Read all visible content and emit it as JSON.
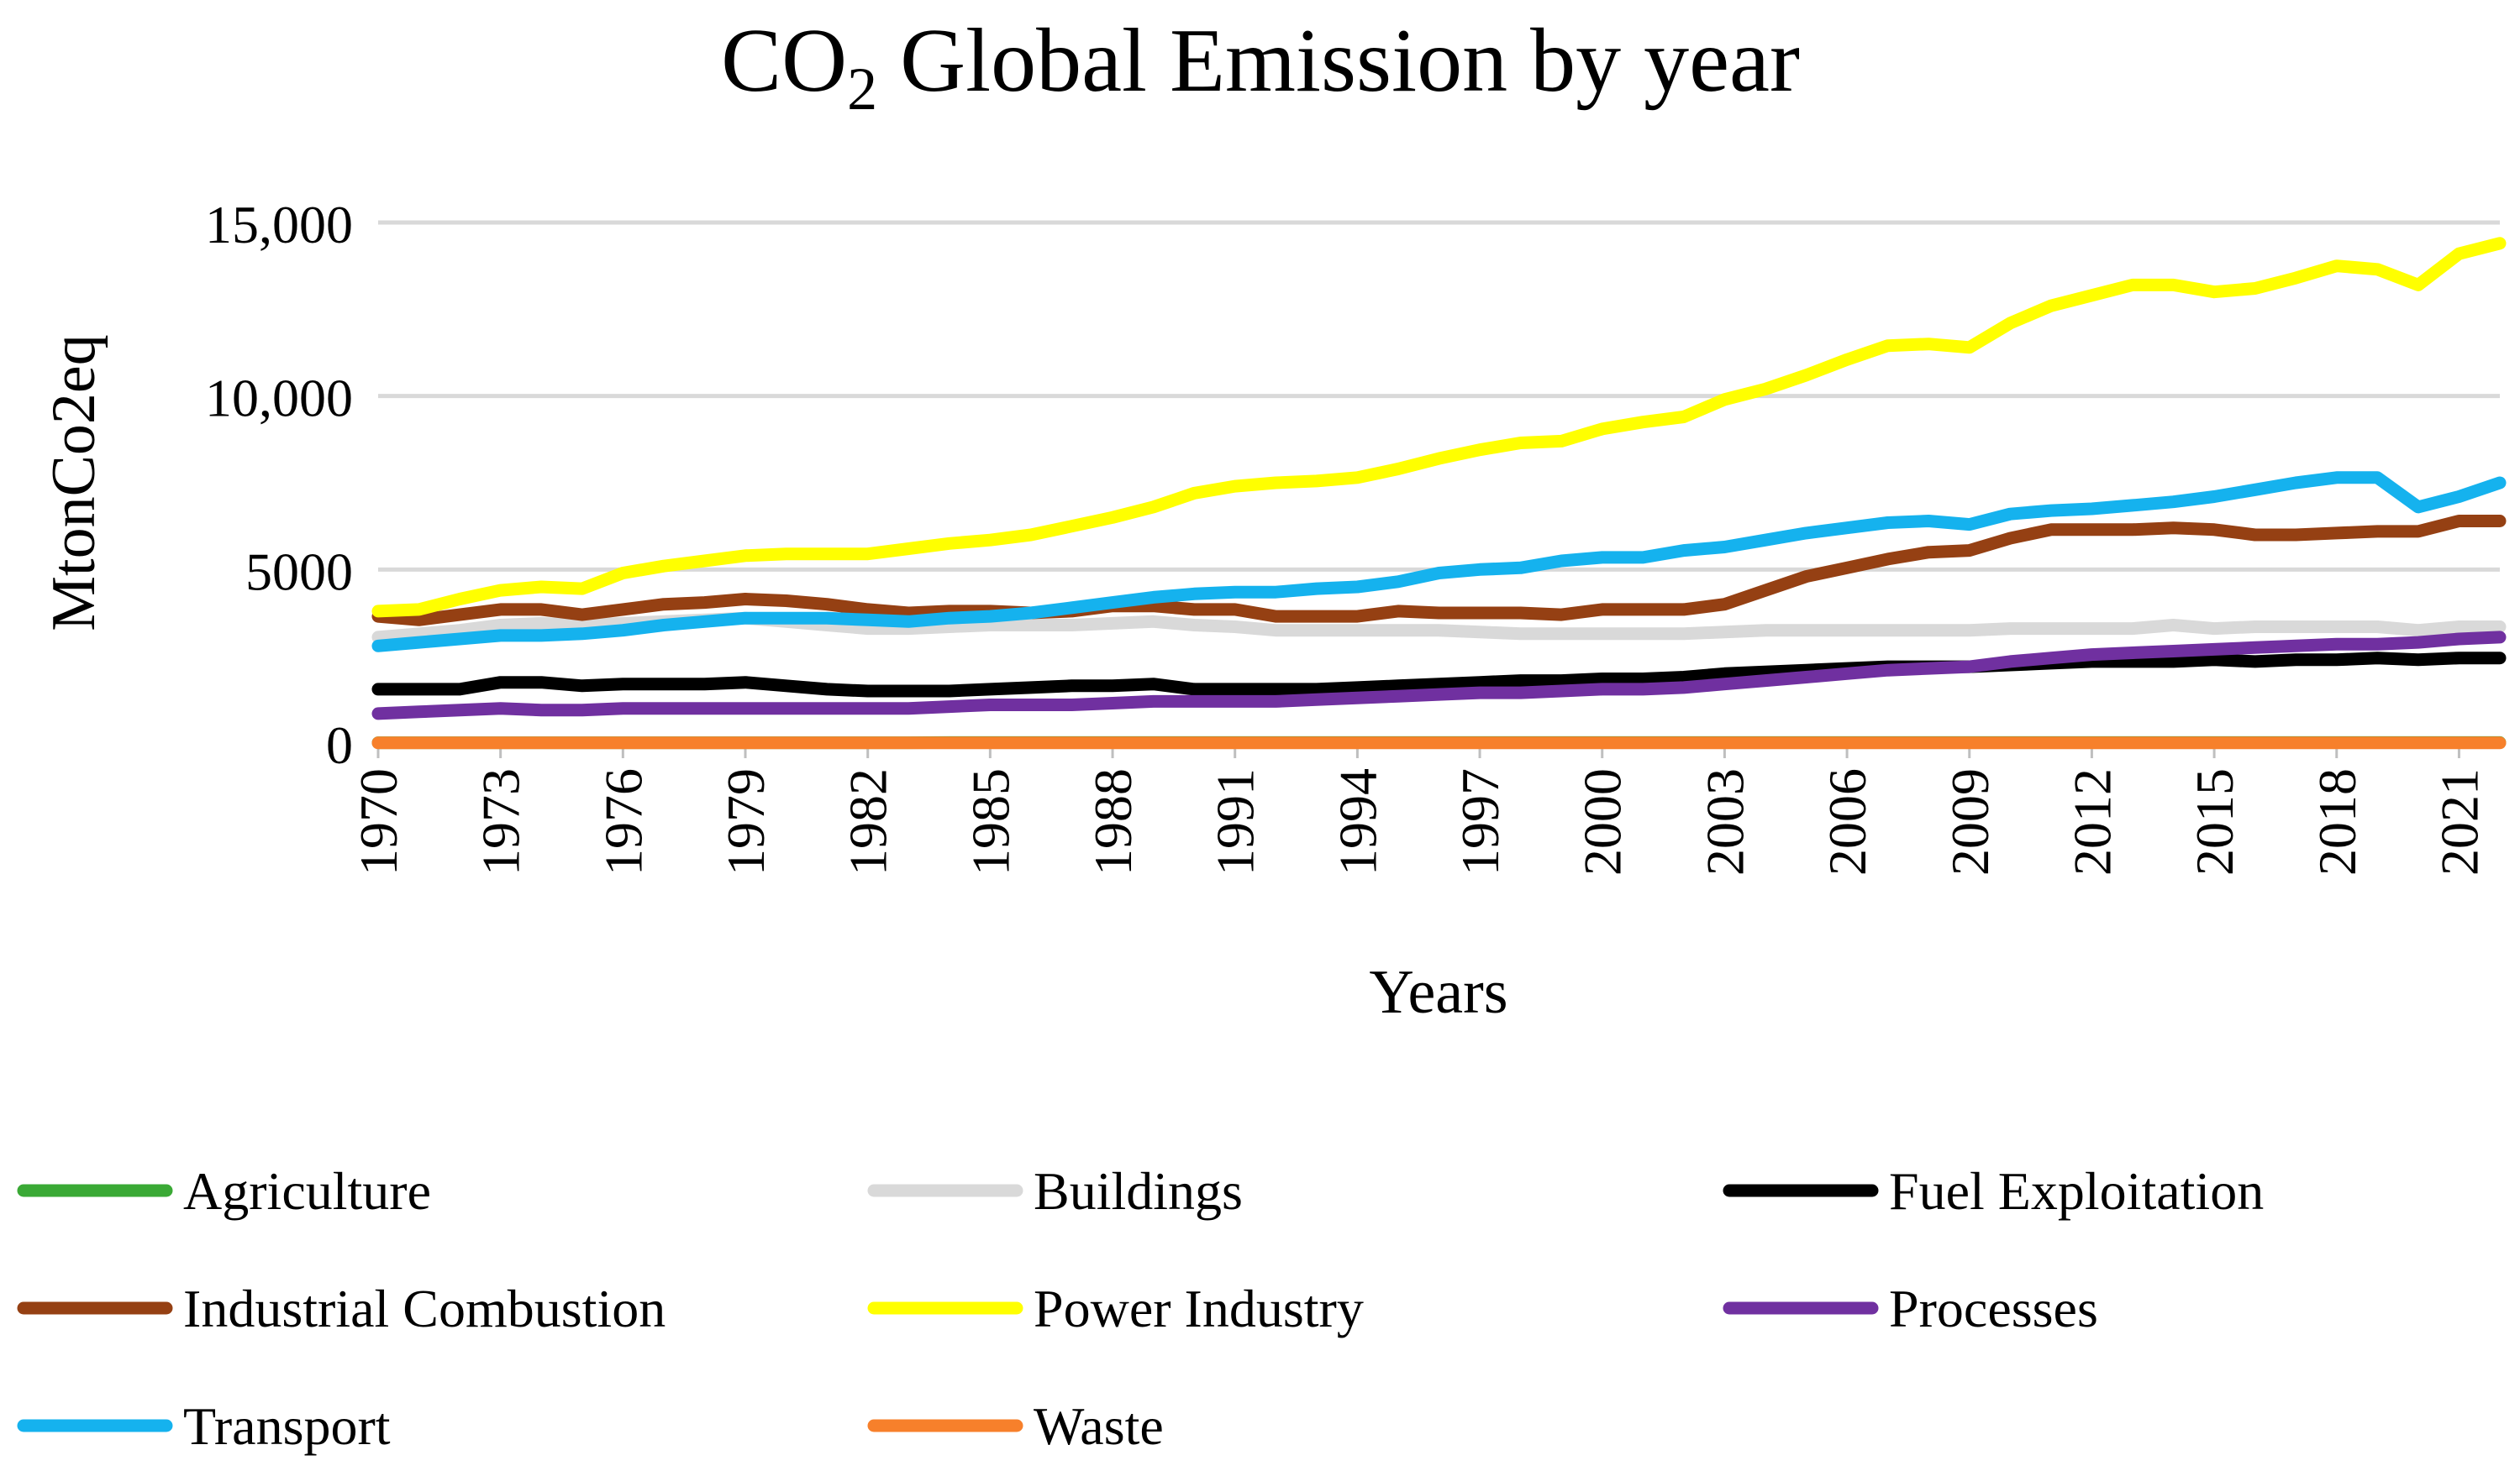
{
  "chart_data": {
    "type": "line",
    "title": "CO2 Global Emission by year",
    "title_parts": {
      "main": "CO",
      "subscript": "2",
      "rest": " Global Emission by year"
    },
    "xlabel": "Years",
    "ylabel": "MtonCo2eq",
    "ylim": [
      0,
      15000
    ],
    "yticks": [
      0,
      5000,
      10000,
      15000
    ],
    "ytick_labels": [
      "0",
      "5000",
      "10,000",
      "15,000"
    ],
    "xtick_years": [
      1970,
      1973,
      1976,
      1979,
      1982,
      1985,
      1988,
      1991,
      1994,
      1997,
      2000,
      2003,
      2006,
      2009,
      2012,
      2015,
      2018,
      2021
    ],
    "xtick_labels": [
      "1970",
      "1973",
      "1976",
      "1979",
      "1982",
      "1985",
      "1988",
      "1991",
      "1994",
      "1997",
      "2000",
      "2003",
      "2006",
      "2009",
      "2012",
      "2015",
      "2018",
      "2021"
    ],
    "x": [
      1970,
      1971,
      1972,
      1973,
      1974,
      1975,
      1976,
      1977,
      1978,
      1979,
      1980,
      1981,
      1982,
      1983,
      1984,
      1985,
      1986,
      1987,
      1988,
      1989,
      1990,
      1991,
      1992,
      1993,
      1994,
      1995,
      1996,
      1997,
      1998,
      1999,
      2000,
      2001,
      2002,
      2003,
      2004,
      2005,
      2006,
      2007,
      2008,
      2009,
      2010,
      2011,
      2012,
      2013,
      2014,
      2015,
      2016,
      2017,
      2018,
      2019,
      2020,
      2021,
      2022
    ],
    "grid": true,
    "legend_position": "bottom",
    "series": [
      {
        "name": "Agriculture",
        "color": "#3aa935",
        "values": [
          10,
          10,
          10,
          10,
          10,
          10,
          10,
          10,
          10,
          10,
          10,
          10,
          10,
          10,
          15,
          15,
          15,
          15,
          15,
          15,
          15,
          15,
          15,
          15,
          15,
          15,
          15,
          15,
          15,
          15,
          15,
          15,
          15,
          15,
          15,
          15,
          15,
          15,
          15,
          15,
          15,
          15,
          15,
          15,
          15,
          15,
          15,
          15,
          15,
          15,
          15,
          15,
          15
        ]
      },
      {
        "name": "Buildings",
        "color": "#d9d9d9",
        "values": [
          3050,
          3150,
          3250,
          3400,
          3450,
          3400,
          3450,
          3500,
          3550,
          3600,
          3500,
          3400,
          3300,
          3300,
          3350,
          3400,
          3400,
          3400,
          3450,
          3500,
          3400,
          3350,
          3250,
          3250,
          3250,
          3250,
          3250,
          3200,
          3150,
          3150,
          3150,
          3150,
          3150,
          3200,
          3250,
          3250,
          3250,
          3250,
          3250,
          3250,
          3300,
          3300,
          3300,
          3300,
          3400,
          3300,
          3350,
          3350,
          3350,
          3350,
          3250,
          3350,
          3350
        ]
      },
      {
        "name": "Fuel Exploitation",
        "color": "#000000",
        "values": [
          1550,
          1550,
          1550,
          1750,
          1750,
          1650,
          1700,
          1700,
          1700,
          1750,
          1650,
          1550,
          1500,
          1500,
          1500,
          1550,
          1600,
          1650,
          1650,
          1700,
          1550,
          1550,
          1550,
          1550,
          1600,
          1650,
          1700,
          1750,
          1800,
          1800,
          1850,
          1850,
          1900,
          2000,
          2050,
          2100,
          2150,
          2200,
          2200,
          2200,
          2250,
          2300,
          2350,
          2350,
          2350,
          2400,
          2350,
          2400,
          2400,
          2450,
          2400,
          2450,
          2450
        ]
      },
      {
        "name": "Industrial Combustion",
        "color": "#954013",
        "values": [
          3650,
          3550,
          3700,
          3850,
          3850,
          3700,
          3850,
          4000,
          4050,
          4150,
          4100,
          4000,
          3850,
          3750,
          3800,
          3800,
          3750,
          3800,
          3950,
          3950,
          3850,
          3850,
          3650,
          3650,
          3650,
          3800,
          3750,
          3750,
          3750,
          3700,
          3850,
          3850,
          3850,
          4000,
          4400,
          4800,
          5050,
          5300,
          5500,
          5550,
          5900,
          6150,
          6150,
          6150,
          6200,
          6150,
          6000,
          6000,
          6050,
          6100,
          6100,
          6400,
          6400
        ]
      },
      {
        "name": "Power Industry",
        "color": "#ffff00",
        "values": [
          3800,
          3850,
          4150,
          4400,
          4500,
          4450,
          4900,
          5100,
          5250,
          5400,
          5450,
          5450,
          5450,
          5600,
          5750,
          5850,
          6000,
          6250,
          6500,
          6800,
          7200,
          7400,
          7500,
          7550,
          7650,
          7900,
          8200,
          8450,
          8650,
          8700,
          9050,
          9250,
          9400,
          9900,
          10200,
          10600,
          11050,
          11450,
          11500,
          11400,
          12100,
          12600,
          12900,
          13200,
          13200,
          13000,
          13100,
          13400,
          13750,
          13650,
          13200,
          14100,
          14400
        ]
      },
      {
        "name": "Processes",
        "color": "#7030a0",
        "values": [
          850,
          900,
          950,
          1000,
          950,
          950,
          1000,
          1000,
          1000,
          1000,
          1000,
          1000,
          1000,
          1000,
          1050,
          1100,
          1100,
          1100,
          1150,
          1200,
          1200,
          1200,
          1200,
          1250,
          1300,
          1350,
          1400,
          1450,
          1450,
          1500,
          1550,
          1550,
          1600,
          1700,
          1800,
          1900,
          2000,
          2100,
          2150,
          2200,
          2350,
          2450,
          2550,
          2600,
          2650,
          2700,
          2750,
          2800,
          2850,
          2850,
          2900,
          3000,
          3050
        ]
      },
      {
        "name": "Transport",
        "color": "#15b2ee",
        "values": [
          2800,
          2900,
          3000,
          3100,
          3100,
          3150,
          3250,
          3400,
          3500,
          3600,
          3600,
          3600,
          3550,
          3500,
          3600,
          3650,
          3750,
          3900,
          4050,
          4200,
          4300,
          4350,
          4350,
          4450,
          4500,
          4650,
          4900,
          5000,
          5050,
          5250,
          5350,
          5350,
          5550,
          5650,
          5850,
          6050,
          6200,
          6350,
          6400,
          6300,
          6600,
          6700,
          6750,
          6850,
          6950,
          7100,
          7300,
          7500,
          7650,
          7650,
          6800,
          7100,
          7500
        ]
      },
      {
        "name": "Waste",
        "color": "#f7802b",
        "values": [
          5,
          5,
          5,
          5,
          5,
          5,
          5,
          5,
          5,
          5,
          5,
          5,
          5,
          5,
          5,
          5,
          5,
          5,
          5,
          5,
          5,
          5,
          5,
          5,
          5,
          5,
          5,
          5,
          5,
          5,
          5,
          5,
          5,
          5,
          5,
          5,
          5,
          5,
          5,
          5,
          5,
          5,
          5,
          5,
          5,
          5,
          5,
          5,
          5,
          5,
          5,
          5,
          5
        ]
      }
    ],
    "gridline_color": "#d9d9d9",
    "axis_color": "#bfbfbf"
  }
}
